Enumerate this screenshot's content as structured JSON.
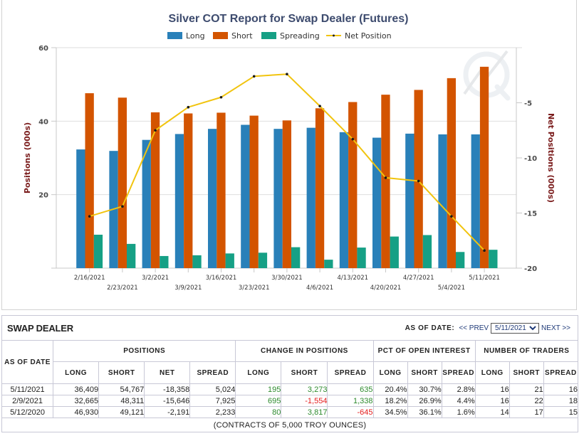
{
  "chart_data": {
    "type": "bar",
    "title": "Silver COT Report for Swap Dealer (Futures)",
    "xlabel": "",
    "ylabel": "Positions (000s)",
    "y2label": "Net Positions (000s)",
    "ylim": [
      0,
      60
    ],
    "y2lim": [
      -20,
      0
    ],
    "yticks": [
      20,
      40,
      60
    ],
    "y2ticks": [
      -5,
      -10,
      -15,
      -20
    ],
    "grid": true,
    "legend_position": "top-center",
    "categories": [
      "2/16/2021",
      "2/23/2021",
      "3/2/2021",
      "3/9/2021",
      "3/16/2021",
      "3/23/2021",
      "3/30/2021",
      "4/6/2021",
      "4/13/2021",
      "4/20/2021",
      "4/27/2021",
      "5/4/2021",
      "5/11/2021"
    ],
    "series": [
      {
        "name": "Long",
        "type": "bar",
        "axis": "left",
        "color": "#2980b9",
        "values": [
          32.3,
          31.9,
          34.9,
          36.5,
          37.9,
          39.0,
          37.9,
          38.2,
          37.0,
          35.5,
          36.6,
          36.4,
          36.4
        ]
      },
      {
        "name": "Short",
        "type": "bar",
        "axis": "left",
        "color": "#d35400",
        "values": [
          47.6,
          46.4,
          42.4,
          42.1,
          42.3,
          41.5,
          40.2,
          43.5,
          45.2,
          47.2,
          48.5,
          51.7,
          54.8
        ]
      },
      {
        "name": "Spreading",
        "type": "bar",
        "axis": "left",
        "color": "#16a085",
        "values": [
          9.1,
          6.6,
          3.3,
          3.5,
          4.0,
          4.2,
          5.7,
          2.3,
          5.6,
          8.6,
          9.0,
          4.4,
          5.0
        ]
      },
      {
        "name": "Net Position",
        "type": "line",
        "axis": "right",
        "color": "#f1c40f",
        "values": [
          -15.3,
          -14.4,
          -7.5,
          -5.4,
          -4.5,
          -2.6,
          -2.4,
          -5.3,
          -8.3,
          -11.8,
          -12.1,
          -15.3,
          -18.4
        ]
      }
    ]
  },
  "table": {
    "title": "SWAP DEALER",
    "as_of_label": "AS OF DATE:",
    "prev_label": "<< PREV",
    "next_label": "NEXT >>",
    "selected_date": "5/11/2021",
    "date_header": "AS OF DATE",
    "groups": [
      "POSITIONS",
      "CHANGE IN POSITIONS",
      "PCT OF OPEN INTEREST",
      "NUMBER OF TRADERS"
    ],
    "columns": [
      "LONG",
      "SHORT",
      "NET",
      "SPREAD",
      "LONG",
      "SHORT",
      "SPREAD",
      "LONG",
      "SHORT",
      "SPREAD",
      "LONG",
      "SHORT",
      "SPREAD"
    ],
    "rows": [
      {
        "date": "5/11/2021",
        "values": [
          "36,409",
          "54,767",
          "-18,358",
          "5,024",
          "195",
          "3,273",
          "635",
          "20.4%",
          "30.7%",
          "2.8%",
          "16",
          "21",
          "16"
        ]
      },
      {
        "date": "2/9/2021",
        "values": [
          "32,665",
          "48,311",
          "-15,646",
          "7,925",
          "695",
          "-1,554",
          "1,338",
          "18.2%",
          "26.9%",
          "4.4%",
          "16",
          "22",
          "18"
        ]
      },
      {
        "date": "5/12/2020",
        "values": [
          "46,930",
          "49,121",
          "-2,191",
          "2,233",
          "80",
          "3,817",
          "-645",
          "34.5%",
          "36.1%",
          "1.6%",
          "14",
          "17",
          "15"
        ]
      }
    ],
    "footer": "(CONTRACTS OF 5,000 TROY OUNCES)",
    "colors": {
      "positive": "#2e8b2e",
      "negative": "#e41c1c"
    }
  }
}
